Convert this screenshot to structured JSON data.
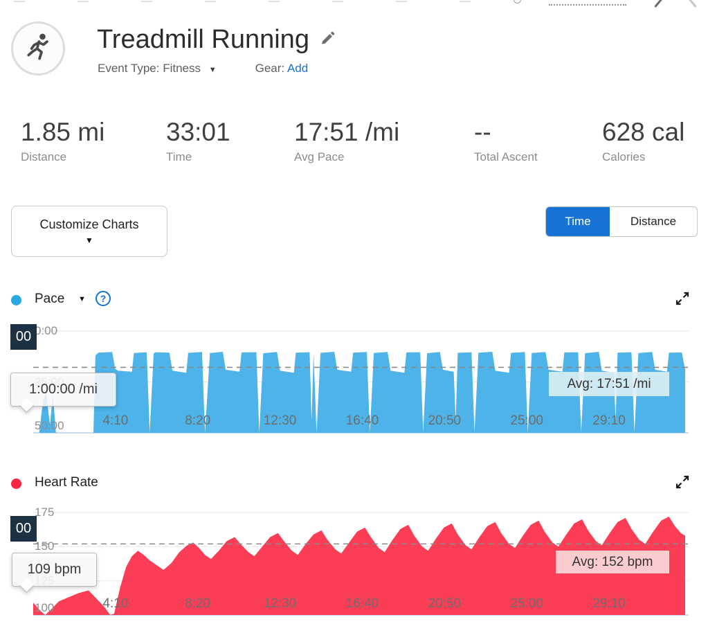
{
  "header": {
    "title": "Treadmill Running",
    "event_type_label": "Event Type:",
    "event_type_value": "Fitness",
    "gear_label": "Gear:",
    "gear_add_label": "Add"
  },
  "stats": [
    {
      "value": "1.85 mi",
      "label": "Distance"
    },
    {
      "value": "33:01",
      "label": "Time"
    },
    {
      "value": "17:51 /mi",
      "label": "Avg Pace"
    },
    {
      "value": "--",
      "label": "Total Ascent"
    },
    {
      "value": "628 cal",
      "label": "Calories"
    }
  ],
  "controls": {
    "customize_charts_label": "Customize Charts",
    "toggle": {
      "options": [
        "Time",
        "Distance"
      ],
      "selected": "Time",
      "selected_color": "#1774d4"
    }
  },
  "pace_section": {
    "title": "Pace",
    "legend_color": "#29a9e2",
    "tooltip": "1:00:00 /mi",
    "axis_badge": "00"
  },
  "hr_section": {
    "title": "Heart Rate",
    "legend_color": "#fb2644",
    "tooltip": "109 bpm",
    "axis_badge": "00"
  },
  "colors": {
    "pace_area": "#4db3e8",
    "hr_area": "#fb3d55",
    "link_blue": "#1673d1",
    "navy_badge": "#1d3145",
    "grid": "#e9e9e9",
    "axis_bottom": "#ccd8ec",
    "avg_dash": "#8a8a8a"
  },
  "chart_data": [
    {
      "id": "pace",
      "type": "area",
      "title": "Pace",
      "color": "#4db3e8",
      "x_unit": "minutes",
      "x_range": [
        0,
        33.02
      ],
      "x_ticks": [
        {
          "label": "4:10",
          "t": 4.1667
        },
        {
          "label": "8:20",
          "t": 8.3333
        },
        {
          "label": "12:30",
          "t": 12.5
        },
        {
          "label": "16:40",
          "t": 16.6667
        },
        {
          "label": "20:50",
          "t": 20.8333
        },
        {
          "label": "25:00",
          "t": 25
        },
        {
          "label": "29:10",
          "t": 29.1667
        }
      ],
      "y_axis": {
        "unit": "min/mi",
        "inverted": true,
        "range": [
          0,
          50
        ],
        "ticks": [
          {
            "label": "0:00",
            "v": 0
          },
          {
            "label": "25:00",
            "v": 25
          },
          {
            "label": "50:00",
            "v": 50
          }
        ]
      },
      "avg": {
        "label": "Avg: 17:51 /mi",
        "value": 17.85
      },
      "points": [
        [
          0,
          60
        ],
        [
          0.3,
          60
        ],
        [
          0.5,
          34
        ],
        [
          0.65,
          30
        ],
        [
          0.85,
          46
        ],
        [
          1.0,
          31
        ],
        [
          1.15,
          52
        ],
        [
          1.8,
          56
        ],
        [
          2.8,
          56
        ],
        [
          3.05,
          52
        ],
        [
          3.15,
          12
        ],
        [
          3.3,
          10.6
        ],
        [
          4.0,
          10.3
        ],
        [
          4.15,
          18.5
        ],
        [
          4.3,
          19.5
        ],
        [
          5.0,
          20
        ],
        [
          5.1,
          10.8
        ],
        [
          5.75,
          10.4
        ],
        [
          5.9,
          50
        ],
        [
          6.1,
          11
        ],
        [
          6.2,
          10.4
        ],
        [
          6.9,
          10.6
        ],
        [
          7.05,
          19.5
        ],
        [
          7.75,
          20.5
        ],
        [
          7.85,
          10.7
        ],
        [
          8.55,
          10.3
        ],
        [
          8.7,
          50
        ],
        [
          8.95,
          10.8
        ],
        [
          9.6,
          10.2
        ],
        [
          9.75,
          19
        ],
        [
          10.45,
          20
        ],
        [
          10.55,
          10.5
        ],
        [
          11.3,
          10.4
        ],
        [
          11.45,
          50
        ],
        [
          11.65,
          10.9
        ],
        [
          12.35,
          10.3
        ],
        [
          12.5,
          19.5
        ],
        [
          13.2,
          20.5
        ],
        [
          13.3,
          10.6
        ],
        [
          14.0,
          10.4
        ],
        [
          14.1,
          44
        ],
        [
          14.2,
          10.8
        ],
        [
          14.35,
          50
        ],
        [
          14.55,
          10.7
        ],
        [
          15.25,
          10.2
        ],
        [
          15.4,
          19
        ],
        [
          16.1,
          20
        ],
        [
          16.2,
          10.6
        ],
        [
          16.9,
          10.3
        ],
        [
          17.05,
          50
        ],
        [
          17.25,
          10.8
        ],
        [
          17.95,
          10.3
        ],
        [
          18.1,
          19.5
        ],
        [
          18.8,
          20.5
        ],
        [
          18.9,
          10.5
        ],
        [
          19.6,
          10.4
        ],
        [
          19.75,
          50
        ],
        [
          19.95,
          10.9
        ],
        [
          20.6,
          10.3
        ],
        [
          20.75,
          19
        ],
        [
          21.3,
          20
        ],
        [
          21.4,
          44
        ],
        [
          21.5,
          10.7
        ],
        [
          22.2,
          10.4
        ],
        [
          22.35,
          50
        ],
        [
          22.55,
          10.6
        ],
        [
          23.25,
          10.2
        ],
        [
          23.4,
          19.5
        ],
        [
          24.1,
          20.5
        ],
        [
          24.2,
          10.7
        ],
        [
          24.9,
          10.3
        ],
        [
          25.05,
          50
        ],
        [
          25.25,
          10.8
        ],
        [
          25.95,
          10.3
        ],
        [
          26.1,
          19
        ],
        [
          26.8,
          20
        ],
        [
          26.9,
          10.5
        ],
        [
          27.6,
          10.4
        ],
        [
          27.75,
          50
        ],
        [
          27.95,
          10.9
        ],
        [
          28.65,
          10.2
        ],
        [
          28.8,
          19.5
        ],
        [
          29.4,
          20.5
        ],
        [
          29.5,
          44
        ],
        [
          29.6,
          10.6
        ],
        [
          30.3,
          10.4
        ],
        [
          30.45,
          50
        ],
        [
          30.65,
          10.8
        ],
        [
          31.35,
          10.3
        ],
        [
          31.5,
          19
        ],
        [
          32.1,
          20
        ],
        [
          32.2,
          10.6
        ],
        [
          32.85,
          10.5
        ],
        [
          33.02,
          19
        ]
      ]
    },
    {
      "id": "heart_rate",
      "type": "area",
      "title": "Heart Rate",
      "color": "#fb3d55",
      "x_unit": "minutes",
      "x_range": [
        0,
        33.02
      ],
      "x_ticks": [
        {
          "label": "4:10",
          "t": 4.1667
        },
        {
          "label": "8:20",
          "t": 8.3333
        },
        {
          "label": "12:30",
          "t": 12.5
        },
        {
          "label": "16:40",
          "t": 16.6667
        },
        {
          "label": "20:50",
          "t": 20.8333
        },
        {
          "label": "25:00",
          "t": 25
        },
        {
          "label": "29:10",
          "t": 29.1667
        }
      ],
      "y_axis": {
        "unit": "bpm",
        "inverted": false,
        "range": [
          100,
          175
        ],
        "ticks": [
          {
            "label": "175",
            "v": 175
          },
          {
            "label": "150",
            "v": 150
          },
          {
            "label": "125",
            "v": 125
          },
          {
            "label": "100",
            "v": 100
          }
        ]
      },
      "avg": {
        "label": "Avg: 152 bpm",
        "value": 152
      },
      "points": [
        [
          0,
          109
        ],
        [
          0.3,
          104
        ],
        [
          0.6,
          100
        ],
        [
          0.9,
          104
        ],
        [
          1.3,
          110
        ],
        [
          1.8,
          113
        ],
        [
          2.3,
          116
        ],
        [
          2.8,
          118
        ],
        [
          3.2,
          112
        ],
        [
          3.6,
          106
        ],
        [
          3.9,
          100
        ],
        [
          4.1,
          101
        ],
        [
          4.4,
          120
        ],
        [
          4.7,
          135
        ],
        [
          5.0,
          143
        ],
        [
          5.3,
          147
        ],
        [
          5.6,
          144
        ],
        [
          5.9,
          140
        ],
        [
          6.3,
          136
        ],
        [
          6.6,
          133
        ],
        [
          7.0,
          138
        ],
        [
          7.4,
          146
        ],
        [
          7.8,
          151
        ],
        [
          8.1,
          153
        ],
        [
          8.4,
          149
        ],
        [
          8.7,
          144
        ],
        [
          9.0,
          141
        ],
        [
          9.4,
          147
        ],
        [
          9.8,
          154
        ],
        [
          10.2,
          157
        ],
        [
          10.5,
          152
        ],
        [
          10.9,
          146
        ],
        [
          11.2,
          143
        ],
        [
          11.6,
          150
        ],
        [
          12.0,
          157
        ],
        [
          12.4,
          160
        ],
        [
          12.7,
          154
        ],
        [
          13.1,
          147
        ],
        [
          13.4,
          144
        ],
        [
          13.8,
          152
        ],
        [
          14.2,
          159
        ],
        [
          14.6,
          162
        ],
        [
          14.9,
          155
        ],
        [
          15.3,
          148
        ],
        [
          15.6,
          145
        ],
        [
          16.0,
          153
        ],
        [
          16.4,
          161
        ],
        [
          16.8,
          164
        ],
        [
          17.1,
          157
        ],
        [
          17.5,
          149
        ],
        [
          17.8,
          146
        ],
        [
          18.2,
          155
        ],
        [
          18.6,
          163
        ],
        [
          19.0,
          166
        ],
        [
          19.3,
          158
        ],
        [
          19.7,
          150
        ],
        [
          20.0,
          147
        ],
        [
          20.4,
          156
        ],
        [
          20.8,
          164
        ],
        [
          21.2,
          167
        ],
        [
          21.5,
          159
        ],
        [
          21.9,
          151
        ],
        [
          22.2,
          148
        ],
        [
          22.6,
          157
        ],
        [
          23.0,
          165
        ],
        [
          23.4,
          168
        ],
        [
          23.7,
          160
        ],
        [
          24.1,
          152
        ],
        [
          24.4,
          149
        ],
        [
          24.8,
          158
        ],
        [
          25.2,
          166
        ],
        [
          25.6,
          169
        ],
        [
          25.9,
          161
        ],
        [
          26.3,
          153
        ],
        [
          26.6,
          150
        ],
        [
          27.0,
          159
        ],
        [
          27.4,
          167
        ],
        [
          27.8,
          170
        ],
        [
          28.1,
          162
        ],
        [
          28.5,
          154
        ],
        [
          28.8,
          151
        ],
        [
          29.2,
          160
        ],
        [
          29.6,
          168
        ],
        [
          30.0,
          171
        ],
        [
          30.3,
          163
        ],
        [
          30.7,
          155
        ],
        [
          31.0,
          152
        ],
        [
          31.4,
          161
        ],
        [
          31.8,
          169
        ],
        [
          32.2,
          172
        ],
        [
          32.5,
          165
        ],
        [
          32.8,
          160
        ],
        [
          33.02,
          158
        ]
      ]
    }
  ]
}
